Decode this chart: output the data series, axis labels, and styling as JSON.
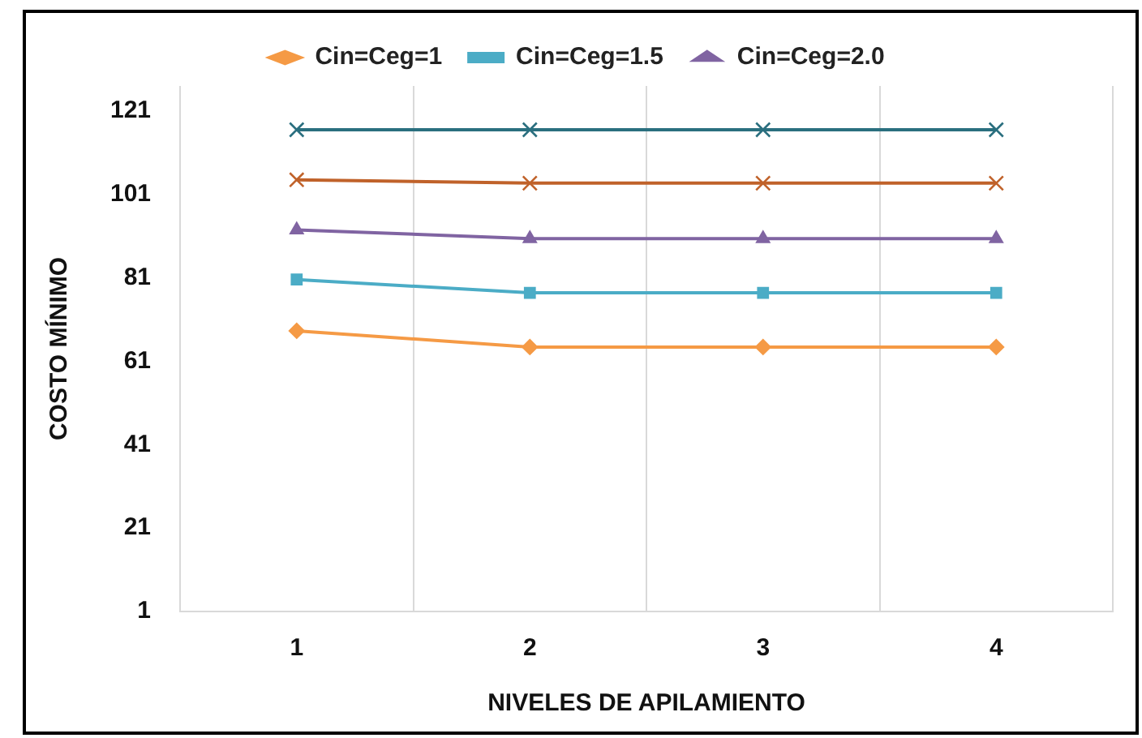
{
  "chart_data": {
    "type": "line",
    "xlabel": "NIVELES DE APILAMIENTO",
    "ylabel": "COSTO MÍNIMO",
    "categories": [
      "1",
      "2",
      "3",
      "4"
    ],
    "series": [
      {
        "name": "Cin=Ceg=1",
        "color": "#f59a45",
        "marker": "diamond",
        "values": [
          68.3,
          64.4,
          64.4,
          64.4
        ]
      },
      {
        "name": "Cin=Ceg=1.5",
        "color": "#4bacc6",
        "marker": "square",
        "values": [
          80.6,
          77.4,
          77.4,
          77.4
        ]
      },
      {
        "name": "Cin=Ceg=2.0",
        "color": "#8064a2",
        "marker": "triangle",
        "values": [
          92.5,
          90.4,
          90.4,
          90.4
        ]
      },
      {
        "color": "#c0622a",
        "marker": "cross",
        "values": [
          104.5,
          103.7,
          103.7,
          103.7
        ]
      },
      {
        "color": "#2a6f7f",
        "marker": "cross",
        "values": [
          116.5,
          116.5,
          116.5,
          116.5
        ]
      }
    ],
    "ylim": [
      1,
      127
    ],
    "yticks": [
      1,
      21,
      41,
      61,
      81,
      101,
      121
    ],
    "grid": "x",
    "legend": "top",
    "line_style": "solid"
  }
}
